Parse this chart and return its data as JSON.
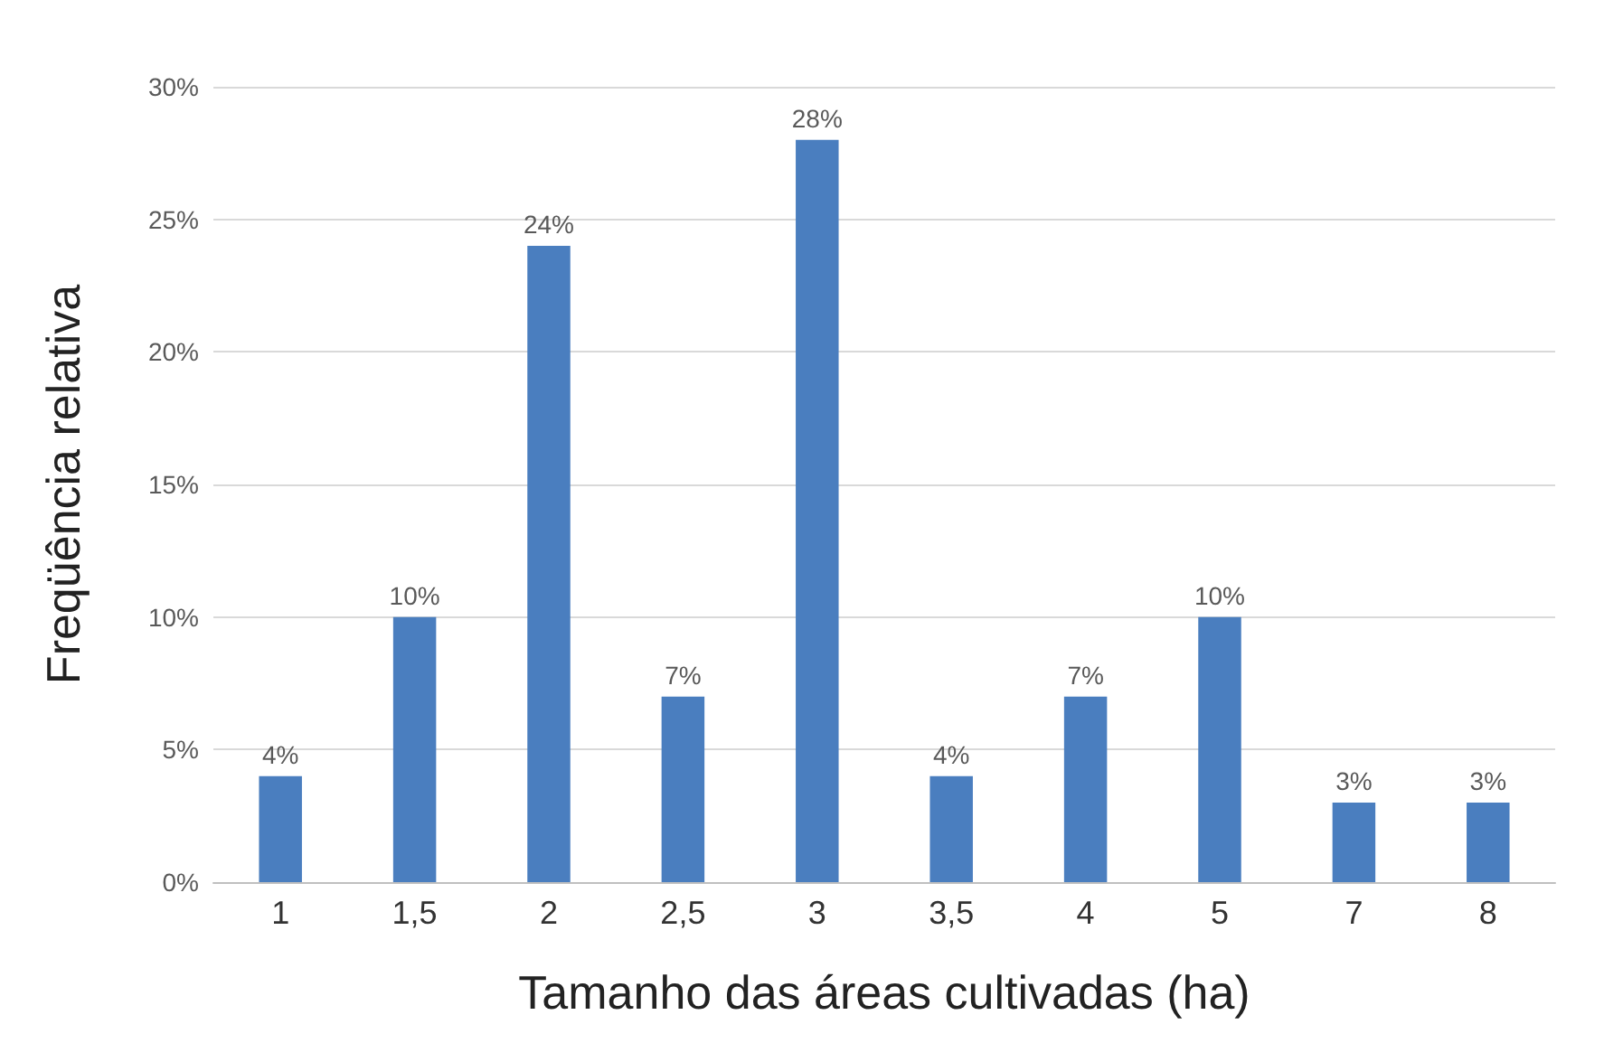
{
  "chart_data": {
    "type": "bar",
    "xlabel": "Tamanho das áreas cultivadas (ha)",
    "ylabel": "Freqüência relativa",
    "categories": [
      "1",
      "1,5",
      "2",
      "2,5",
      "3",
      "3,5",
      "4",
      "5",
      "7",
      "8"
    ],
    "values": [
      4,
      10,
      24,
      7,
      28,
      4,
      7,
      10,
      3,
      3
    ],
    "value_labels": [
      "4%",
      "10%",
      "24%",
      "7%",
      "28%",
      "4%",
      "7%",
      "10%",
      "3%",
      "3%"
    ],
    "color": "#4a7ebf",
    "ylim": [
      0,
      30
    ],
    "yticks": [
      {
        "value": 0,
        "label": "0%"
      },
      {
        "value": 5,
        "label": "5%"
      },
      {
        "value": 10,
        "label": "10%"
      },
      {
        "value": 15,
        "label": "15%"
      },
      {
        "value": 20,
        "label": "20%"
      },
      {
        "value": 25,
        "label": "25%"
      },
      {
        "value": 30,
        "label": "30%"
      }
    ],
    "grid": "y"
  }
}
